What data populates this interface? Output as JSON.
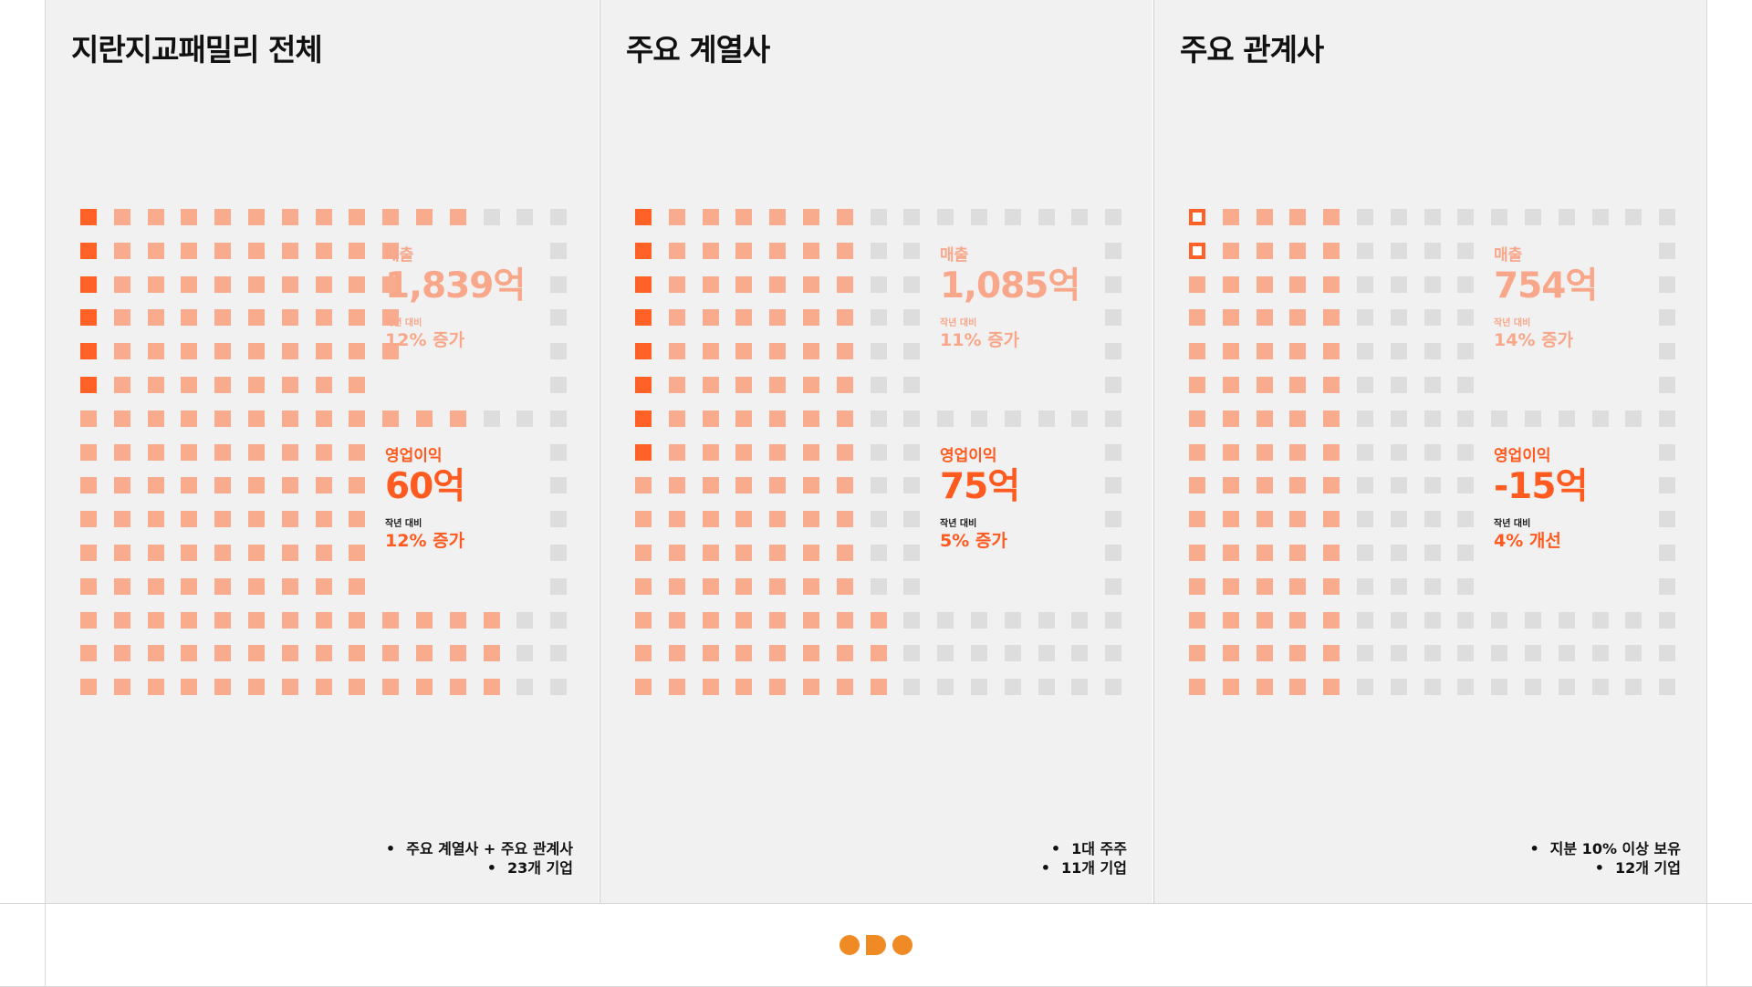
{
  "colors": {
    "highlight": "#ff6126",
    "light": "#f9ab8e",
    "gray": "#dddddd",
    "brand": "#f08a24"
  },
  "panels": [
    {
      "title": "지란지교패밀리 전체",
      "sales": {
        "label": "매출",
        "value": "1,839억",
        "compare_label": "작년 대비",
        "change": "12% 증가"
      },
      "profit": {
        "label": "영업이익",
        "value": "60억",
        "compare_label": "작년 대비",
        "change": "12% 증가"
      },
      "notes": [
        "주요 계열사 + 주요 관계사",
        "23개 기업"
      ]
    },
    {
      "title": "주요 계열사",
      "sales": {
        "label": "매출",
        "value": "1,085억",
        "compare_label": "작년 대비",
        "change": "11% 증가"
      },
      "profit": {
        "label": "영업이익",
        "value": "75억",
        "compare_label": "작년 대비",
        "change": "5% 증가"
      },
      "notes": [
        "1대 주주",
        "11개 기업"
      ]
    },
    {
      "title": "주요 관계사",
      "sales": {
        "label": "매출",
        "value": "754억",
        "compare_label": "작년 대비",
        "change": "14% 증가"
      },
      "profit": {
        "label": "영업이익",
        "value": "-15억",
        "compare_label": "작년 대비",
        "change": "4% 개선"
      },
      "notes": [
        "지분 10% 이상 보유",
        "12개 기업"
      ]
    }
  ],
  "chart_data": [
    {
      "type": "waffle",
      "grid": {
        "rows": 15,
        "cols": 15
      },
      "units_per_row": {
        "highlight": [
          1,
          1,
          1,
          1,
          1,
          1,
          0,
          0,
          0,
          0,
          0,
          0,
          0,
          0,
          0
        ],
        "light": [
          11,
          9,
          9,
          9,
          9,
          8,
          12,
          9,
          9,
          9,
          9,
          9,
          13,
          13,
          13
        ]
      },
      "legend": [
        "매출",
        "영업이익"
      ]
    },
    {
      "type": "waffle",
      "grid": {
        "rows": 15,
        "cols": 15
      },
      "units_per_row": {
        "highlight": [
          1,
          1,
          1,
          1,
          1,
          1,
          1,
          1,
          0,
          0,
          0,
          0,
          0,
          0,
          0
        ],
        "light": [
          6,
          6,
          6,
          6,
          6,
          6,
          6,
          6,
          7,
          7,
          7,
          7,
          8,
          8,
          8
        ]
      },
      "legend": [
        "매출",
        "영업이익"
      ]
    },
    {
      "type": "waffle",
      "grid": {
        "rows": 15,
        "cols": 15
      },
      "units_per_row": {
        "highlight_outline": [
          1,
          1,
          0,
          0,
          0,
          0,
          0,
          0,
          0,
          0,
          0,
          0,
          0,
          0,
          0
        ],
        "light": [
          4,
          4,
          5,
          5,
          5,
          5,
          5,
          5,
          5,
          5,
          5,
          5,
          5,
          5,
          5
        ]
      },
      "legend": [
        "매출",
        "영업이익"
      ]
    }
  ]
}
